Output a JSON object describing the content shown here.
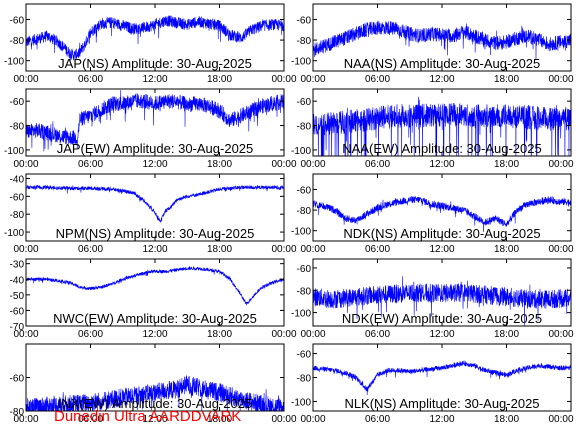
{
  "footer_text": "Dunedin Ultra AARDDVARK",
  "colors": {
    "trace": "#0000ff",
    "axis": "#000000",
    "footer": "#ff0000"
  },
  "chart_data": [
    {
      "type": "line",
      "title": "JAP(NS) Amplitude: 30-Aug-2025",
      "ylim": [
        -110,
        -45
      ],
      "yticks": [
        -100,
        -80,
        -60
      ],
      "xticks": [
        "00:00",
        "06:00",
        "12:00",
        "18:00",
        "00:00"
      ],
      "xlim_hours": [
        0,
        24
      ],
      "grid": false,
      "series": [
        {
          "x_hours": [
            0,
            1,
            2,
            3,
            4,
            4.5,
            5,
            5.5,
            6,
            7,
            8,
            9,
            10,
            11,
            12,
            13,
            14,
            15,
            16,
            17,
            18,
            19,
            20,
            21,
            22,
            23,
            24
          ],
          "values": [
            -82,
            -79,
            -76,
            -82,
            -92,
            -95,
            -92,
            -84,
            -72,
            -64,
            -63,
            -66,
            -69,
            -68,
            -65,
            -61,
            -63,
            -65,
            -62,
            -64,
            -66,
            -75,
            -78,
            -70,
            -66,
            -65,
            -66
          ],
          "noise": 8
        }
      ]
    },
    {
      "type": "line",
      "title": "NAA(NS) Amplitude: 30-Aug-2025",
      "ylim": [
        -110,
        -45
      ],
      "yticks": [
        -100,
        -80,
        -60
      ],
      "xticks": [
        "00:00",
        "06:00",
        "12:00",
        "18:00",
        "00:00"
      ],
      "xlim_hours": [
        0,
        24
      ],
      "grid": false,
      "series": [
        {
          "x_hours": [
            0,
            1,
            2,
            3,
            4,
            5,
            6,
            7,
            8,
            9,
            10,
            11,
            12,
            13,
            14,
            15,
            16,
            17,
            18,
            19,
            20,
            21,
            22,
            23,
            24
          ],
          "values": [
            -90,
            -86,
            -82,
            -78,
            -74,
            -70,
            -68,
            -68,
            -70,
            -74,
            -76,
            -74,
            -75,
            -76,
            -72,
            -76,
            -80,
            -83,
            -82,
            -78,
            -76,
            -80,
            -84,
            -82,
            -80
          ],
          "noise": 10
        }
      ]
    },
    {
      "type": "line",
      "title": "JAP(EW) Amplitude: 30-Aug-2025",
      "ylim": [
        -105,
        -50
      ],
      "yticks": [
        -100,
        -80,
        -60
      ],
      "xticks": [
        "00:00",
        "06:00",
        "12:00",
        "18:00",
        "00:00"
      ],
      "xlim_hours": [
        0,
        24
      ],
      "grid": false,
      "series": [
        {
          "x_hours": [
            0,
            1,
            2,
            3,
            4,
            4.8,
            5,
            6,
            7,
            8,
            9,
            10,
            11,
            12,
            13,
            14,
            15,
            16,
            17,
            18,
            19,
            20,
            21,
            22,
            23,
            24
          ],
          "values": [
            -85,
            -84,
            -86,
            -88,
            -90,
            -90,
            -75,
            -72,
            -67,
            -62,
            -62,
            -60,
            -60,
            -62,
            -60,
            -60,
            -63,
            -62,
            -64,
            -68,
            -76,
            -72,
            -68,
            -64,
            -62,
            -60
          ],
          "noise": 9
        }
      ]
    },
    {
      "type": "line",
      "title": "NAA(EW) Amplitude: 30-Aug-2025",
      "ylim": [
        -105,
        -50
      ],
      "yticks": [
        -100,
        -80,
        -60
      ],
      "xticks": [
        "00:00",
        "06:00",
        "12:00",
        "18:00",
        "00:00"
      ],
      "xlim_hours": [
        0,
        24
      ],
      "grid": false,
      "series": [
        {
          "x_hours": [
            0,
            2,
            4,
            6,
            8,
            10,
            12,
            14,
            16,
            18,
            20,
            22,
            24
          ],
          "values": [
            -80,
            -78,
            -76,
            -74,
            -72,
            -72,
            -71,
            -71,
            -72,
            -72,
            -73,
            -75,
            -74
          ],
          "noise": 14,
          "dropouts": true
        }
      ]
    },
    {
      "type": "line",
      "title": "NPM(NS) Amplitude: 30-Aug-2025",
      "ylim": [
        -110,
        -35
      ],
      "yticks": [
        -100,
        -80,
        -60,
        -40
      ],
      "xticks": [
        "00:00",
        "06:00",
        "12:00",
        "18:00",
        "00:00"
      ],
      "xlim_hours": [
        0,
        24
      ],
      "grid": false,
      "series": [
        {
          "x_hours": [
            0,
            2,
            4,
            6,
            8,
            10,
            11,
            12,
            12.5,
            13,
            13.5,
            14,
            15,
            16,
            17,
            18,
            19,
            20,
            22,
            24
          ],
          "values": [
            -50,
            -50,
            -51,
            -51,
            -52,
            -56,
            -65,
            -78,
            -88,
            -76,
            -72,
            -64,
            -60,
            -58,
            -55,
            -52,
            -51,
            -50,
            -50,
            -50
          ],
          "noise": 3
        }
      ]
    },
    {
      "type": "line",
      "title": "NDK(NS) Amplitude: 30-Aug-2025",
      "ylim": [
        -110,
        -45
      ],
      "yticks": [
        -100,
        -80,
        -60
      ],
      "xticks": [
        "00:00",
        "06:00",
        "12:00",
        "18:00",
        "00:00"
      ],
      "xlim_hours": [
        0,
        24
      ],
      "grid": false,
      "series": [
        {
          "x_hours": [
            0,
            1,
            2,
            3,
            4,
            5,
            6,
            7,
            8,
            9,
            10,
            11,
            12,
            13,
            14,
            15,
            16,
            17,
            18,
            19,
            20,
            21,
            22,
            23,
            24
          ],
          "values": [
            -74,
            -76,
            -80,
            -88,
            -90,
            -84,
            -78,
            -74,
            -72,
            -70,
            -70,
            -74,
            -76,
            -78,
            -80,
            -86,
            -92,
            -88,
            -94,
            -80,
            -74,
            -72,
            -70,
            -72,
            -72
          ],
          "noise": 5
        }
      ]
    },
    {
      "type": "line",
      "title": "NWC(EW) Amplitude: 30-Aug-2025",
      "ylim": [
        -70,
        -27
      ],
      "yticks": [
        -70,
        -60,
        -50,
        -40,
        -30
      ],
      "xticks": [
        "00:00",
        "06:00",
        "12:00",
        "18:00",
        "00:00"
      ],
      "xlim_hours": [
        0,
        24
      ],
      "grid": false,
      "series": [
        {
          "x_hours": [
            0,
            1,
            2,
            3,
            4,
            5,
            6,
            7,
            8,
            9,
            10,
            11,
            12,
            13,
            14,
            15,
            16,
            17,
            18,
            19,
            20,
            20.5,
            21,
            21.5,
            22,
            23,
            24
          ],
          "values": [
            -40,
            -40,
            -40,
            -41,
            -42,
            -45,
            -46,
            -45,
            -43,
            -40,
            -38,
            -36,
            -35,
            -35,
            -34,
            -33,
            -33,
            -34,
            -35,
            -40,
            -50,
            -56,
            -52,
            -48,
            -45,
            -42,
            -40
          ],
          "noise": 1.5
        }
      ]
    },
    {
      "type": "line",
      "title": "NDK(EW) Amplitude: 30-Aug-2025",
      "ylim": [
        -112,
        -52
      ],
      "yticks": [
        -100,
        -80,
        -60
      ],
      "xticks": [
        "00:00",
        "06:00",
        "12:00",
        "18:00",
        "00:00"
      ],
      "xlim_hours": [
        0,
        24
      ],
      "grid": false,
      "series": [
        {
          "x_hours": [
            0,
            2,
            4,
            6,
            8,
            10,
            12,
            14,
            16,
            18,
            20,
            22,
            24
          ],
          "values": [
            -86,
            -88,
            -86,
            -84,
            -83,
            -82,
            -83,
            -82,
            -84,
            -86,
            -88,
            -88,
            -87
          ],
          "noise": 12
        }
      ]
    },
    {
      "type": "line",
      "title": "INX(EW) Amplitude: 30-Aug-2025",
      "ylim": [
        -80,
        -40
      ],
      "yticks": [
        -80,
        -60
      ],
      "xticks": [
        "00:00",
        "06:00",
        "12:00",
        "18:00",
        "00:00"
      ],
      "xlim_hours": [
        0,
        24
      ],
      "grid": false,
      "series": [
        {
          "x_hours": [
            0,
            2,
            4,
            6,
            8,
            10,
            12,
            14,
            15,
            16,
            18,
            20,
            22,
            24
          ],
          "values": [
            -78,
            -77,
            -76,
            -75,
            -73,
            -71,
            -69,
            -67,
            -64,
            -66,
            -69,
            -73,
            -76,
            -78
          ],
          "noise": 8
        }
      ]
    },
    {
      "type": "line",
      "title": "NLK(NS) Amplitude: 30-Aug-2025",
      "ylim": [
        -108,
        -52
      ],
      "yticks": [
        -100,
        -80,
        -60
      ],
      "xticks": [
        "00:00",
        "06:00",
        "12:00",
        "18:00",
        "00:00"
      ],
      "xlim_hours": [
        0,
        24
      ],
      "grid": false,
      "series": [
        {
          "x_hours": [
            0,
            1,
            2,
            3,
            4,
            5,
            6,
            7,
            8,
            9,
            10,
            11,
            12,
            13,
            14,
            15,
            16,
            17,
            18,
            19,
            20,
            21,
            22,
            23,
            24
          ],
          "values": [
            -72,
            -73,
            -74,
            -76,
            -80,
            -90,
            -78,
            -74,
            -74,
            -75,
            -74,
            -73,
            -72,
            -70,
            -68,
            -70,
            -74,
            -76,
            -78,
            -74,
            -72,
            -70,
            -71,
            -72,
            -72
          ],
          "noise": 3
        }
      ]
    }
  ]
}
